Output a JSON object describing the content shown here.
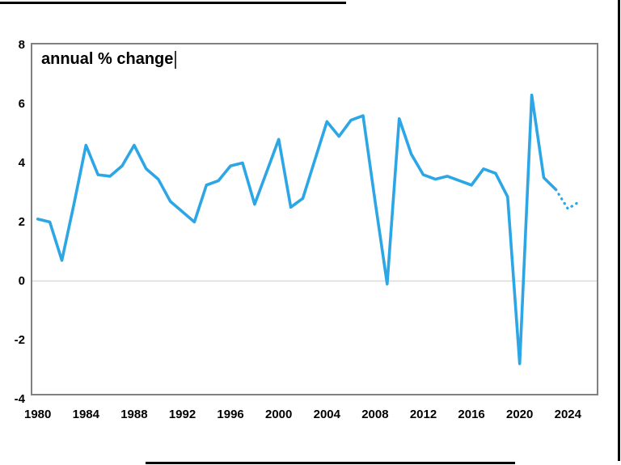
{
  "chart": {
    "title": "annual % change",
    "cursor_visible": true
  },
  "chart_data": {
    "type": "line",
    "title": "annual % change",
    "series_name": "annual % change",
    "x": [
      1980,
      1981,
      1982,
      1983,
      1984,
      1985,
      1986,
      1987,
      1988,
      1989,
      1990,
      1991,
      1992,
      1993,
      1994,
      1995,
      1996,
      1997,
      1998,
      1999,
      2000,
      2001,
      2002,
      2003,
      2004,
      2005,
      2006,
      2007,
      2008,
      2009,
      2010,
      2011,
      2012,
      2013,
      2014,
      2015,
      2016,
      2017,
      2018,
      2019,
      2020,
      2021,
      2022,
      2023,
      2024,
      2025
    ],
    "values": [
      2.1,
      2.0,
      0.7,
      2.6,
      4.6,
      3.6,
      3.55,
      3.9,
      4.6,
      3.8,
      3.45,
      2.7,
      2.35,
      2.0,
      3.25,
      3.4,
      3.9,
      4.0,
      2.6,
      3.7,
      4.8,
      2.5,
      2.8,
      4.1,
      5.4,
      4.9,
      5.45,
      5.6,
      2.7,
      -0.1,
      5.5,
      4.3,
      3.6,
      3.45,
      3.55,
      3.4,
      3.25,
      3.8,
      3.65,
      2.85,
      -2.8,
      6.3,
      3.5,
      3.1,
      2.45,
      2.7
    ],
    "forecast_from_year": 2023,
    "forecast_style": "dotted",
    "xlabel": "",
    "ylabel": "",
    "ylim": [
      -4,
      8
    ],
    "yticks": [
      8,
      6,
      4,
      2,
      0,
      -2,
      -4
    ],
    "xticks": [
      1980,
      1984,
      1988,
      1992,
      1996,
      2000,
      2004,
      2008,
      2012,
      2016,
      2020,
      2024
    ],
    "grid": "zero-line-only",
    "legend_position": "none",
    "line_color": "#2ca6e4",
    "zero_line_color": "#d9d9d9",
    "plot_border_color": "#808080",
    "text_color": "#000000"
  }
}
